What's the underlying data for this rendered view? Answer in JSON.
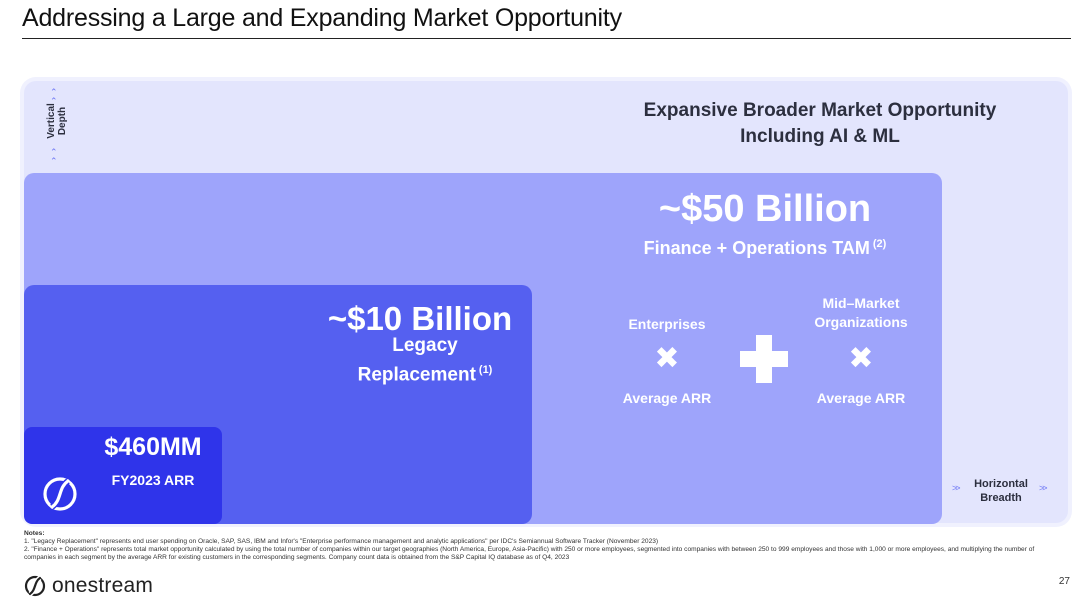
{
  "slide": {
    "title": "Addressing a Large and Expanding Market Opportunity",
    "page_number": "27"
  },
  "outer": {
    "title_line1": "Expansive Broader Market Opportunity",
    "title_line2": "Including AI & ML",
    "vertical_axis_line1": "Vertical",
    "vertical_axis_line2": "Depth",
    "horizontal_axis_line1": "Horizontal",
    "horizontal_axis_line2": "Breadth"
  },
  "tam": {
    "value": "~$50 Billion",
    "label": "Finance + Operations TAM",
    "footnote": "(2)",
    "enterprises_label": "Enterprises",
    "enterprises_times": "✖",
    "enterprises_metric": "Average ARR",
    "midmarket_label_line1": "Mid–Market",
    "midmarket_label_line2": "Organizations",
    "midmarket_times": "✖",
    "midmarket_metric": "Average ARR"
  },
  "legacy": {
    "value": "~$10 Billion",
    "label_line1": "Legacy",
    "label_line2": "Replacement",
    "footnote": "(1)"
  },
  "arr": {
    "value": "$460MM",
    "label": "FY2023 ARR"
  },
  "notes": {
    "heading": "Notes:",
    "note1": "1.  \"Legacy Replacement\" represents end user spending on Oracle, SAP, SAS, IBM and Infor's \"Enterprise performance management and analytic applications\" per IDC's Semiannual Software Tracker (November 2023)",
    "note2": "2.  \"Finance + Operations\" represents total market opportunity calculated by using the total number of companies within our target geographies (North America, Europe, Asia-Pacific) with 250 or more employees, segmented into companies with between 250 to 999 employees and those with 1,000 or more employees, and multiplying the number of companies in each segment by the average ARR for existing customers in the corresponding segments. Company count data is obtained from the S&P Capital IQ database as of Q4, 2023"
  },
  "brand": {
    "name": "onestream"
  },
  "colors": {
    "outer_box": "#e3e5fd",
    "tam_box": "#9ea4fb",
    "legacy_box": "#5560f0",
    "arr_box": "#2f34ea"
  }
}
